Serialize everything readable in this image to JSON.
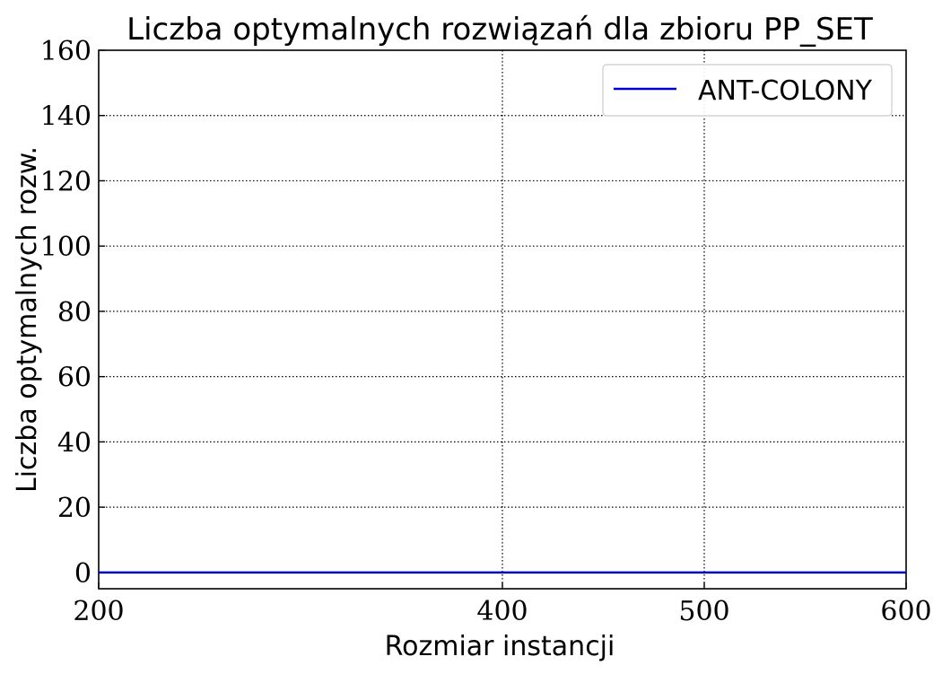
{
  "chart_data": {
    "type": "line",
    "title": "Liczba optymalnych rozwiązań dla zbioru PP_SET",
    "xlabel": "Rozmiar instancji",
    "ylabel": "Liczba optymalnych rozw.",
    "xlim": [
      200,
      600
    ],
    "ylim": [
      -5,
      160
    ],
    "x_ticks": [
      200,
      400,
      500,
      600
    ],
    "y_ticks": [
      0,
      20,
      40,
      60,
      80,
      100,
      120,
      140,
      160
    ],
    "grid": true,
    "grid_style": "dotted",
    "legend_position": "top-right",
    "x": [
      200,
      400,
      500,
      600
    ],
    "series": [
      {
        "name": "ANT-COLONY",
        "color": "#0000cc",
        "values": [
          0,
          0,
          0,
          0
        ]
      }
    ]
  }
}
